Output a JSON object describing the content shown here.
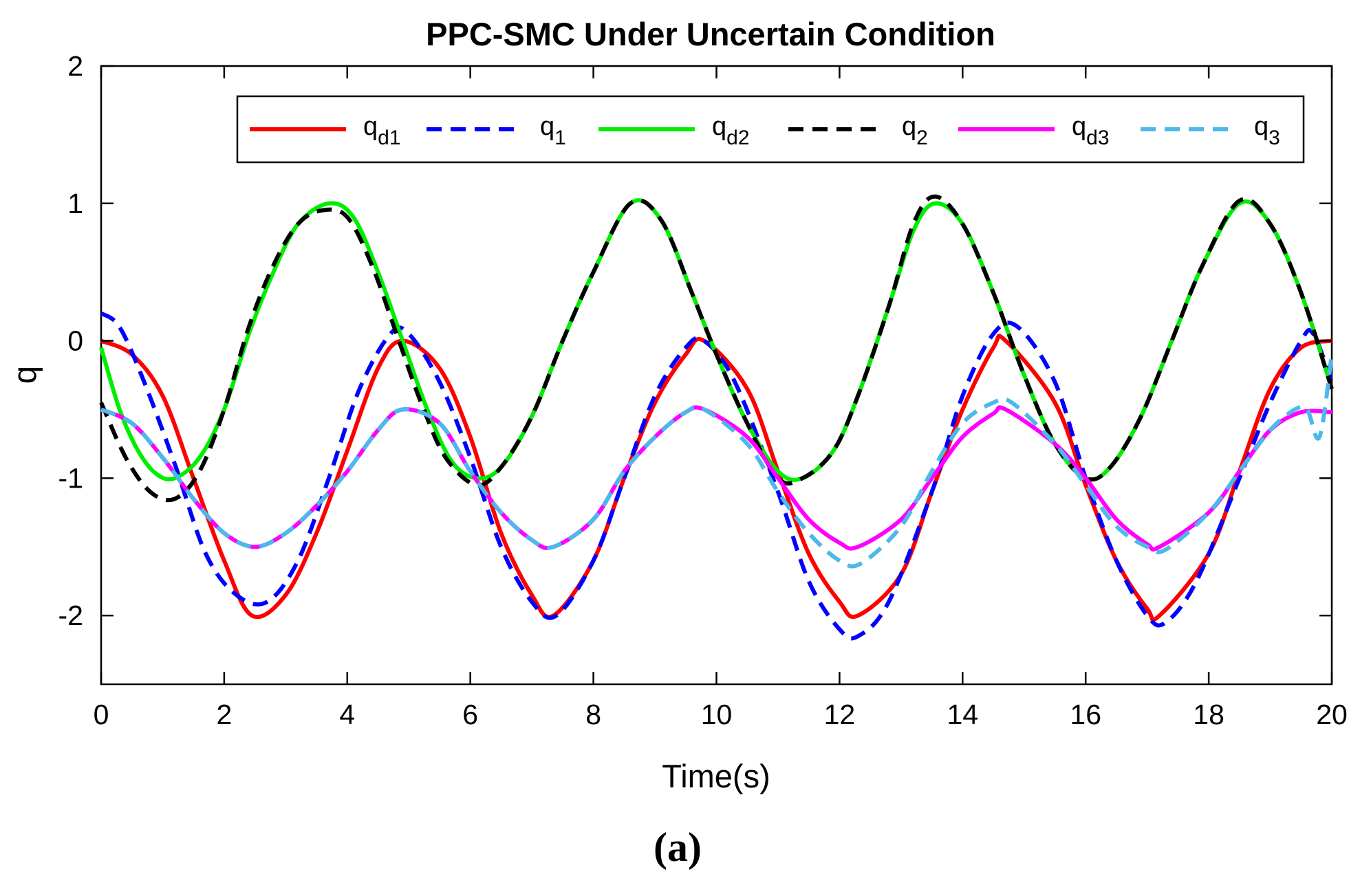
{
  "chart_data": {
    "type": "line",
    "title": "PPC-SMC Under Uncertain Condition",
    "xlabel": "Time(s)",
    "ylabel": "q",
    "xlim": [
      0,
      20
    ],
    "ylim": [
      -2.5,
      2
    ],
    "xticks": [
      "0",
      "2",
      "4",
      "6",
      "8",
      "10",
      "12",
      "14",
      "16",
      "18",
      "20"
    ],
    "yticks": [
      "2",
      "1",
      "0",
      "-1",
      "-2"
    ],
    "grid": false,
    "legend_position": "top-right",
    "panel_label": "(a)",
    "series": [
      {
        "key": "qd1",
        "name": "q",
        "sub": "d1",
        "color": "#ff0000",
        "dashed": false,
        "x": [
          0,
          0.5,
          1,
          1.5,
          2,
          2.45,
          3,
          3.5,
          4,
          4.5,
          4.9,
          5.5,
          6,
          6.5,
          7,
          7.35,
          8,
          8.5,
          9,
          9.5,
          9.8,
          10.5,
          11,
          11.5,
          12,
          12.3,
          13,
          13.5,
          14,
          14.5,
          14.7,
          15.5,
          16,
          16.5,
          17,
          17.2,
          18,
          18.5,
          19,
          19.5,
          20
        ],
        "y": [
          0,
          -0.1,
          -0.4,
          -1.0,
          -1.6,
          -2.0,
          -1.85,
          -1.4,
          -0.8,
          -0.2,
          0,
          -0.2,
          -0.7,
          -1.4,
          -1.85,
          -2.0,
          -1.6,
          -1.0,
          -0.45,
          -0.1,
          0,
          -0.35,
          -0.95,
          -1.55,
          -1.9,
          -2.0,
          -1.7,
          -1.1,
          -0.5,
          -0.05,
          0,
          -0.45,
          -1.05,
          -1.6,
          -1.95,
          -2.0,
          -1.55,
          -0.95,
          -0.35,
          -0.05,
          0
        ]
      },
      {
        "key": "q1",
        "name": "q",
        "sub": "1",
        "color": "#0000ff",
        "dashed": true,
        "x": [
          0,
          0.3,
          0.7,
          1.2,
          1.7,
          2.2,
          2.7,
          3.2,
          3.7,
          4.2,
          4.7,
          5.0,
          5.5,
          6.0,
          6.5,
          7.0,
          7.4,
          8.0,
          8.5,
          9.0,
          9.5,
          9.8,
          10.3,
          11.0,
          11.5,
          12.0,
          12.3,
          12.8,
          13.5,
          14.0,
          14.5,
          14.9,
          15.5,
          16.0,
          16.5,
          17.0,
          17.3,
          17.8,
          18.5,
          19.0,
          19.5,
          19.7,
          20
        ],
        "y": [
          0.2,
          0.1,
          -0.3,
          -0.9,
          -1.55,
          -1.85,
          -1.9,
          -1.6,
          -1.0,
          -0.35,
          0.05,
          0.05,
          -0.3,
          -0.85,
          -1.5,
          -1.9,
          -2.0,
          -1.6,
          -1.0,
          -0.4,
          -0.05,
          0,
          -0.3,
          -1.1,
          -1.75,
          -2.1,
          -2.15,
          -1.9,
          -1.1,
          -0.4,
          0.05,
          0.1,
          -0.3,
          -1.0,
          -1.6,
          -2.0,
          -2.05,
          -1.75,
          -1.0,
          -0.45,
          0,
          0.05,
          -0.3
        ]
      },
      {
        "key": "qd2",
        "name": "q",
        "sub": "d2",
        "color": "#00ee00",
        "dashed": false,
        "x": [
          0,
          0.3,
          0.6,
          0.9,
          1.2,
          1.6,
          2.0,
          2.4,
          2.8,
          3.2,
          3.7,
          4.1,
          4.5,
          4.9,
          5.3,
          5.7,
          6.1,
          6.5,
          7.0,
          7.5,
          8.0,
          8.6,
          9.1,
          9.6,
          10.0,
          10.5,
          11.0,
          11.4,
          11.9,
          12.3,
          12.8,
          13.2,
          13.55,
          14.0,
          14.5,
          15.0,
          15.5,
          16.0,
          16.4,
          16.9,
          17.4,
          17.9,
          18.5,
          19.0,
          19.5,
          20
        ],
        "y": [
          -0.05,
          -0.5,
          -0.8,
          -0.97,
          -1.0,
          -0.85,
          -0.5,
          0.05,
          0.5,
          0.85,
          1.0,
          0.9,
          0.5,
          0.0,
          -0.5,
          -0.88,
          -1.0,
          -0.92,
          -0.55,
          0.0,
          0.5,
          1.0,
          0.88,
          0.35,
          -0.1,
          -0.6,
          -0.95,
          -1.0,
          -0.8,
          -0.4,
          0.25,
          0.8,
          1.0,
          0.85,
          0.35,
          -0.25,
          -0.75,
          -1.0,
          -0.92,
          -0.55,
          0.0,
          0.55,
          1.0,
          0.85,
          0.35,
          -0.35
        ]
      },
      {
        "key": "q2",
        "name": "q",
        "sub": "2",
        "color": "#000000",
        "dashed": true,
        "x": [
          0,
          0.4,
          0.8,
          1.2,
          1.6,
          2.0,
          2.4,
          2.8,
          3.2,
          3.6,
          4.0,
          4.4,
          4.8,
          5.2,
          5.6,
          6.1,
          6.5,
          7.0,
          7.5,
          8.0,
          8.6,
          9.1,
          9.6,
          10.0,
          10.5,
          11.0,
          11.4,
          11.9,
          12.3,
          12.8,
          13.2,
          13.55,
          14.0,
          14.5,
          15.0,
          15.5,
          16.0,
          16.4,
          16.9,
          17.4,
          17.9,
          18.5,
          19.0,
          19.5,
          20
        ],
        "y": [
          -0.45,
          -0.85,
          -1.1,
          -1.15,
          -0.95,
          -0.5,
          0.1,
          0.55,
          0.85,
          0.95,
          0.9,
          0.55,
          0.05,
          -0.45,
          -0.85,
          -1.05,
          -0.92,
          -0.55,
          0.0,
          0.5,
          1.0,
          0.88,
          0.35,
          -0.1,
          -0.6,
          -1.0,
          -1.0,
          -0.8,
          -0.4,
          0.25,
          0.85,
          1.05,
          0.85,
          0.35,
          -0.25,
          -0.75,
          -1.0,
          -0.92,
          -0.55,
          0.0,
          0.55,
          1.02,
          0.85,
          0.35,
          -0.35
        ]
      },
      {
        "key": "qd3",
        "name": "q",
        "sub": "d3",
        "color": "#ff00ff",
        "dashed": false,
        "x": [
          0,
          0.5,
          1.0,
          1.5,
          2.0,
          2.5,
          3.0,
          3.5,
          4.0,
          4.5,
          4.9,
          5.5,
          6.0,
          6.5,
          7.0,
          7.35,
          8.0,
          8.5,
          9.0,
          9.5,
          9.8,
          10.5,
          11.0,
          11.5,
          12.0,
          12.3,
          13.0,
          13.5,
          14.0,
          14.5,
          14.7,
          15.5,
          16.0,
          16.5,
          17.0,
          17.2,
          18.0,
          18.5,
          19.0,
          19.5,
          20
        ],
        "y": [
          -0.5,
          -0.6,
          -0.85,
          -1.15,
          -1.4,
          -1.5,
          -1.4,
          -1.2,
          -0.95,
          -0.65,
          -0.5,
          -0.6,
          -0.95,
          -1.25,
          -1.45,
          -1.5,
          -1.3,
          -0.95,
          -0.7,
          -0.52,
          -0.5,
          -0.7,
          -1.0,
          -1.3,
          -1.47,
          -1.5,
          -1.3,
          -1.0,
          -0.7,
          -0.53,
          -0.5,
          -0.75,
          -1.0,
          -1.3,
          -1.48,
          -1.5,
          -1.25,
          -0.95,
          -0.65,
          -0.52,
          -0.52
        ]
      },
      {
        "key": "q3",
        "name": "q",
        "sub": "3",
        "color": "#4db8ea",
        "dashed": true,
        "x": [
          0,
          0.5,
          1.0,
          1.5,
          2.0,
          2.5,
          3.0,
          3.5,
          4.0,
          4.5,
          4.9,
          5.5,
          6.0,
          6.5,
          7.0,
          7.35,
          8.0,
          8.5,
          9.0,
          9.5,
          9.8,
          10.5,
          11.0,
          11.5,
          12.0,
          12.35,
          13.0,
          13.5,
          14.0,
          14.5,
          14.8,
          15.5,
          16.0,
          16.5,
          17.0,
          17.3,
          18.0,
          18.5,
          19.0,
          19.4,
          19.6,
          19.8,
          20
        ],
        "y": [
          -0.5,
          -0.6,
          -0.85,
          -1.15,
          -1.4,
          -1.5,
          -1.4,
          -1.2,
          -0.95,
          -0.65,
          -0.5,
          -0.6,
          -0.95,
          -1.25,
          -1.45,
          -1.5,
          -1.3,
          -0.95,
          -0.7,
          -0.52,
          -0.5,
          -0.75,
          -1.1,
          -1.4,
          -1.6,
          -1.62,
          -1.35,
          -0.95,
          -0.6,
          -0.45,
          -0.45,
          -0.75,
          -1.05,
          -1.35,
          -1.5,
          -1.52,
          -1.25,
          -0.95,
          -0.65,
          -0.5,
          -0.5,
          -0.7,
          -0.1
        ]
      }
    ]
  }
}
